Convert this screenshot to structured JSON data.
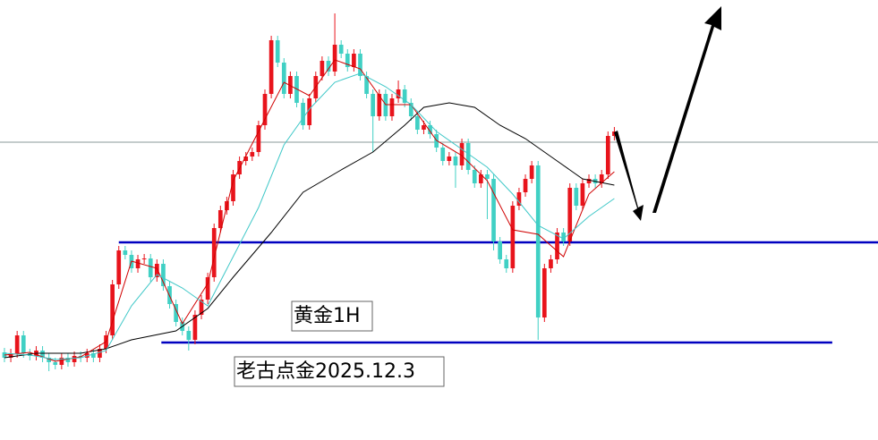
{
  "chart_data": {
    "type": "candlestick",
    "xlim": [
      -0.7,
      137.5
    ],
    "ylim": [
      0,
      492
    ],
    "up_color": "#e8141c",
    "down_color": "#40d0c4",
    "candles": [
      [
        98,
        103,
        87,
        92
      ],
      [
        92,
        102,
        87,
        97
      ],
      [
        97,
        122,
        92,
        117
      ],
      [
        117,
        122,
        92,
        97
      ],
      [
        97,
        102,
        89,
        94
      ],
      [
        94,
        105,
        89,
        100
      ],
      [
        100,
        105,
        87,
        92
      ],
      [
        92,
        97,
        77,
        87
      ],
      [
        87,
        92,
        79,
        84
      ],
      [
        84,
        97,
        79,
        92
      ],
      [
        92,
        97,
        82,
        87
      ],
      [
        87,
        99,
        82,
        94
      ],
      [
        94,
        99,
        87,
        92
      ],
      [
        92,
        102,
        87,
        97
      ],
      [
        97,
        102,
        87,
        92
      ],
      [
        92,
        107,
        87,
        102
      ],
      [
        102,
        122,
        97,
        117
      ],
      [
        117,
        179,
        112,
        174
      ],
      [
        174,
        217,
        169,
        212
      ],
      [
        212,
        217,
        202,
        207
      ],
      [
        207,
        212,
        187,
        192
      ],
      [
        192,
        207,
        187,
        202
      ],
      [
        202,
        208,
        197,
        203
      ],
      [
        203,
        208,
        177,
        182
      ],
      [
        182,
        202,
        177,
        197
      ],
      [
        197,
        202,
        167,
        172
      ],
      [
        172,
        177,
        147,
        152
      ],
      [
        152,
        157,
        127,
        132
      ],
      [
        132,
        137,
        117,
        122
      ],
      [
        122,
        127,
        100,
        112
      ],
      [
        112,
        145,
        107,
        140
      ],
      [
        140,
        162,
        135,
        157
      ],
      [
        157,
        187,
        152,
        182
      ],
      [
        182,
        242,
        177,
        237
      ],
      [
        237,
        262,
        232,
        257
      ],
      [
        257,
        272,
        252,
        267
      ],
      [
        267,
        302,
        262,
        297
      ],
      [
        297,
        317,
        292,
        312
      ],
      [
        312,
        322,
        307,
        317
      ],
      [
        317,
        327,
        312,
        322
      ],
      [
        322,
        357,
        317,
        352
      ],
      [
        352,
        392,
        347,
        387
      ],
      [
        387,
        452,
        382,
        447
      ],
      [
        447,
        452,
        417,
        422
      ],
      [
        422,
        427,
        382,
        387
      ],
      [
        387,
        412,
        382,
        407
      ],
      [
        407,
        412,
        372,
        377
      ],
      [
        377,
        382,
        347,
        352
      ],
      [
        352,
        387,
        347,
        382
      ],
      [
        382,
        412,
        377,
        407
      ],
      [
        407,
        429,
        402,
        424
      ],
      [
        424,
        429,
        407,
        412
      ],
      [
        412,
        477,
        407,
        442
      ],
      [
        442,
        447,
        427,
        432
      ],
      [
        432,
        437,
        412,
        417
      ],
      [
        417,
        437,
        412,
        432
      ],
      [
        432,
        437,
        402,
        407
      ],
      [
        407,
        412,
        382,
        387
      ],
      [
        387,
        392,
        322,
        362
      ],
      [
        362,
        392,
        357,
        387
      ],
      [
        387,
        392,
        357,
        362
      ],
      [
        362,
        387,
        357,
        382
      ],
      [
        382,
        402,
        377,
        392
      ],
      [
        392,
        397,
        372,
        377
      ],
      [
        377,
        382,
        357,
        362
      ],
      [
        362,
        367,
        342,
        347
      ],
      [
        347,
        357,
        342,
        352
      ],
      [
        352,
        357,
        337,
        342
      ],
      [
        342,
        347,
        322,
        327
      ],
      [
        327,
        332,
        307,
        312
      ],
      [
        312,
        322,
        307,
        317
      ],
      [
        317,
        322,
        282,
        307
      ],
      [
        307,
        337,
        302,
        332
      ],
      [
        332,
        337,
        297,
        302
      ],
      [
        302,
        307,
        282,
        287
      ],
      [
        287,
        302,
        282,
        297
      ],
      [
        297,
        302,
        247,
        292
      ],
      [
        292,
        297,
        212,
        222
      ],
      [
        222,
        227,
        197,
        202
      ],
      [
        202,
        207,
        187,
        192
      ],
      [
        192,
        267,
        187,
        262
      ],
      [
        262,
        282,
        257,
        277
      ],
      [
        277,
        297,
        272,
        292
      ],
      [
        292,
        312,
        287,
        307
      ],
      [
        307,
        312,
        112,
        137
      ],
      [
        137,
        197,
        132,
        192
      ],
      [
        192,
        207,
        187,
        202
      ],
      [
        202,
        237,
        197,
        232
      ],
      [
        232,
        237,
        217,
        222
      ],
      [
        222,
        287,
        217,
        282
      ],
      [
        282,
        287,
        257,
        262
      ],
      [
        262,
        292,
        257,
        287
      ],
      [
        287,
        297,
        282,
        292
      ],
      [
        292,
        297,
        282,
        287
      ],
      [
        287,
        302,
        282,
        297
      ],
      [
        297,
        345,
        292,
        340
      ],
      [
        340,
        350,
        335,
        345
      ]
    ],
    "series": [
      {
        "color": "#000000",
        "x": [
          0,
          5,
          12,
          16,
          20,
          27,
          32,
          36,
          42,
          47,
          53,
          58,
          63,
          66,
          70,
          74,
          78,
          82,
          87,
          91,
          96
        ],
        "values": [
          92,
          97,
          97,
          102,
          112,
          122,
          147,
          182,
          232,
          277,
          302,
          322,
          352,
          372,
          377,
          372,
          352,
          337,
          312,
          292,
          285
        ]
      },
      {
        "color": "#d00000",
        "x": [
          0,
          4,
          8,
          12,
          16,
          20,
          24,
          28,
          32,
          36,
          40,
          44,
          48,
          52,
          56,
          60,
          64,
          68,
          72,
          76,
          80,
          84,
          88,
          92,
          96
        ],
        "values": [
          95,
          98,
          88,
          93,
          110,
          200,
          192,
          130,
          175,
          290,
          345,
          400,
          385,
          425,
          415,
          375,
          375,
          335,
          318,
          290,
          235,
          230,
          205,
          275,
          300
        ]
      },
      {
        "color": "#40c8c8",
        "x": [
          0,
          4,
          8,
          12,
          16,
          20,
          24,
          28,
          32,
          36,
          40,
          44,
          48,
          52,
          56,
          60,
          64,
          68,
          72,
          76,
          80,
          84,
          88,
          92,
          96
        ],
        "values": [
          97,
          95,
          90,
          92,
          100,
          150,
          185,
          170,
          150,
          205,
          260,
          330,
          370,
          400,
          410,
          395,
          375,
          345,
          325,
          305,
          275,
          240,
          225,
          250,
          270
        ]
      }
    ],
    "hlines": [
      {
        "value": 333,
        "color": "#8a9a9a",
        "from": -0.7,
        "to": 137.5
      },
      {
        "value": 221,
        "color": "#0000c0",
        "from": 18,
        "to": 137.5
      },
      {
        "value": 109,
        "color": "#0000c0",
        "from": 24.7,
        "to": 130.3
      }
    ],
    "annotations": [
      "黄金1H",
      "老古点金2025.12.3"
    ]
  }
}
